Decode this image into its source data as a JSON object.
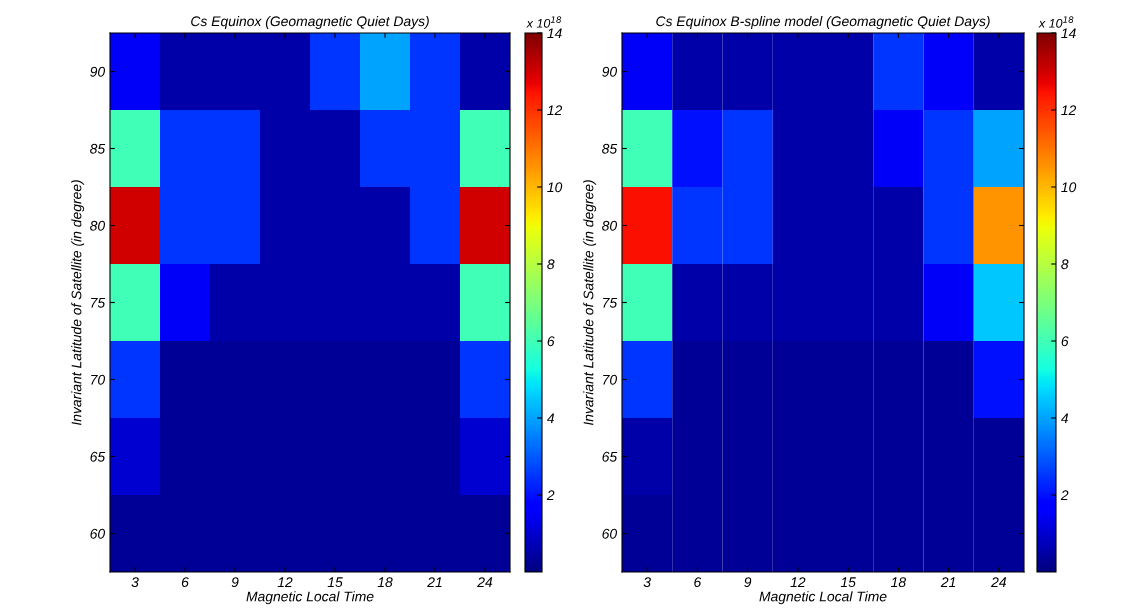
{
  "chart_data": [
    {
      "type": "heatmap",
      "title": "Cs Equinox (Geomagnetic Quiet Days)",
      "xlabel": "Magnetic Local Time",
      "ylabel": "Invariant Latitude of Satellite (in degree)",
      "clabel": "x 10$^{18}$",
      "categories": [
        "3",
        "6",
        "9",
        "12",
        "15",
        "18",
        "21",
        "24"
      ],
      "y_categories": [
        "90",
        "85",
        "80",
        "75",
        "70",
        "65",
        "60"
      ],
      "cells": [
        [
          1.5,
          0.5,
          0.5,
          0.5,
          2.5,
          4,
          2.5,
          0.5
        ],
        [
          6,
          2.5,
          2.5,
          0.5,
          0.5,
          2.5,
          2.5,
          6
        ],
        [
          13,
          2.5,
          2.5,
          0.5,
          0.5,
          0.5,
          2.5,
          13
        ],
        [
          6,
          1.5,
          0.5,
          0.5,
          0.5,
          0.5,
          0.5,
          6
        ],
        [
          2.5,
          0.3,
          0.3,
          0.3,
          0.3,
          0.3,
          0.3,
          2.5
        ],
        [
          1,
          0.3,
          0.3,
          0.3,
          0.3,
          0.3,
          0.3,
          1
        ],
        [
          0.3,
          0.3,
          0.3,
          0.3,
          0.3,
          0.3,
          0.3,
          0.3
        ]
      ],
      "clim": [
        0,
        14
      ],
      "cticks": [
        2,
        4,
        6,
        8,
        10,
        12,
        14
      ]
    },
    {
      "type": "heatmap",
      "title": "Cs Equinox B-spline model (Geomagnetic Quiet Days)",
      "xlabel": "Magnetic Local Time",
      "ylabel": "Invariant Latitude of Satellite (in degree)",
      "clabel": "x 10$^{18}$",
      "categories": [
        "3",
        "6",
        "9",
        "12",
        "15",
        "18",
        "21",
        "24"
      ],
      "y_categories": [
        "90",
        "85",
        "80",
        "75",
        "70",
        "65",
        "60"
      ],
      "cells": [
        [
          1.5,
          0.5,
          0.5,
          0.5,
          0.5,
          2.5,
          1.5,
          0.5
        ],
        [
          6,
          2,
          2.5,
          0.5,
          0.5,
          1.5,
          2.5,
          4
        ],
        [
          12.5,
          2.5,
          2.5,
          0.5,
          0.5,
          0.5,
          2.5,
          10.5
        ],
        [
          6,
          0.5,
          0.5,
          0.5,
          0.5,
          0.5,
          1.5,
          4.5
        ],
        [
          2.5,
          0.3,
          0.3,
          0.3,
          0.3,
          0.3,
          0.3,
          2
        ],
        [
          0.5,
          0.3,
          0.3,
          0.3,
          0.3,
          0.3,
          0.3,
          0.3
        ],
        [
          0.3,
          0.3,
          0.3,
          0.3,
          0.3,
          0.3,
          0.3,
          0.3
        ]
      ],
      "clim": [
        0,
        14
      ],
      "cticks": [
        2,
        4,
        6,
        8,
        10,
        12,
        14
      ]
    }
  ]
}
